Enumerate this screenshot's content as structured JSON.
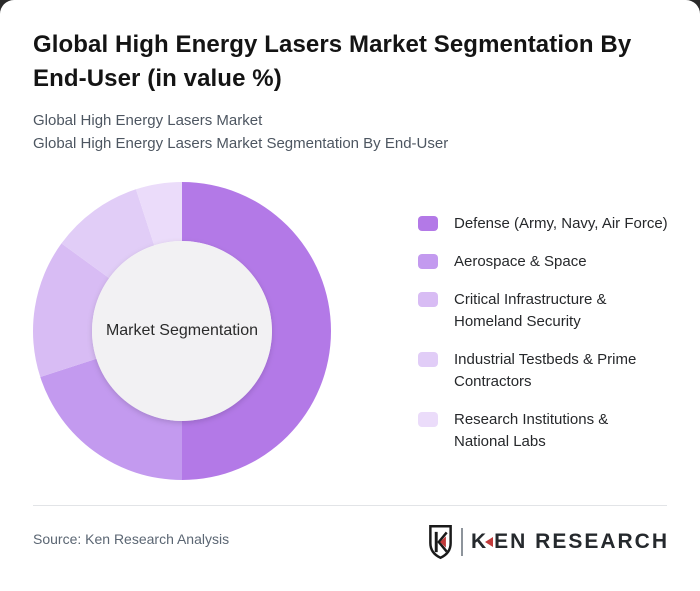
{
  "header": {
    "title": "Global High Energy Lasers Market Segmentation By End-User (in value %)",
    "subtitle_line1": "Global High Energy Lasers Market",
    "subtitle_line2": "Global High Energy Lasers Market Segmentation By End-User"
  },
  "chart_data": {
    "type": "pie",
    "variant": "donut",
    "title": "Global High Energy Lasers Market Segmentation By End-User (in value %)",
    "center_label": "Market Segmentation",
    "units": "value %",
    "direction": "clockwise",
    "start_angle_deg": 0,
    "legend_position": "right",
    "series": [
      {
        "name": "Defense (Army, Navy, Air Force)",
        "legend_label": "Defense (Army, Navy, Air Force)",
        "value": 50,
        "color": "#b379e7"
      },
      {
        "name": "Aerospace & Space",
        "legend_label": "Aerospace & Space",
        "value": 20,
        "color": "#c39aef"
      },
      {
        "name": "Critical Infrastructure & Homeland Security",
        "legend_label": "Critical Infrastructure &\nHomeland Security",
        "value": 15,
        "color": "#d8bcf4"
      },
      {
        "name": "Industrial Testbeds & Prime Contractors",
        "legend_label": "Industrial Testbeds & Prime\nContractors",
        "value": 10,
        "color": "#e1cdf7"
      },
      {
        "name": "Research Institutions & National Labs",
        "legend_label": "Research Institutions &\nNational Labs",
        "value": 5,
        "color": "#ebdcfa"
      }
    ],
    "inner_circle_color": "#f2f1f3"
  },
  "footer": {
    "source": "Source: Ken Research Analysis",
    "logo_k": "K",
    "logo_rest": "EN RESEARCH"
  }
}
